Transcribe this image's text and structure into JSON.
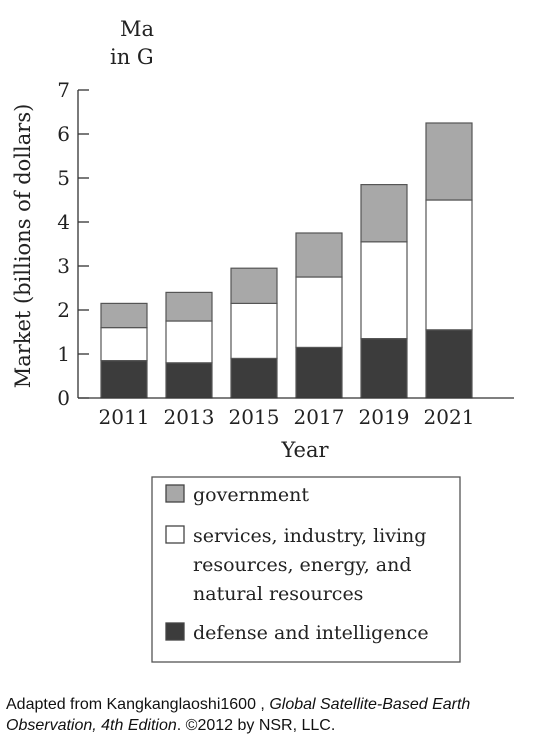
{
  "chart_data": {
    "type": "bar",
    "stacked": true,
    "title_lines": [
      "Ma",
      "in G"
    ],
    "xlabel": "Year",
    "ylabel": "Market (billions of dollars)",
    "ylim": [
      0,
      7
    ],
    "yticks": [
      "0",
      "1",
      "2",
      "3",
      "4",
      "5",
      "6",
      "7"
    ],
    "categories": [
      "2011",
      "2013",
      "2015",
      "2017",
      "2019",
      "2021"
    ],
    "series": [
      {
        "name": "defense and intelligence",
        "values": [
          0.85,
          0.8,
          0.9,
          1.15,
          1.35,
          1.55
        ]
      },
      {
        "name": "services, industry, living resources, energy, and natural resources",
        "values": [
          0.75,
          0.95,
          1.25,
          1.6,
          2.2,
          2.95
        ]
      },
      {
        "name": "government",
        "values": [
          0.55,
          0.65,
          0.8,
          1.0,
          1.3,
          1.75
        ]
      }
    ],
    "legend": {
      "placement": "bottom",
      "items": [
        {
          "lines": [
            "government"
          ],
          "color": "#a8a8a8"
        },
        {
          "lines": [
            "services, industry, living",
            "resources, energy, and",
            "natural resources"
          ],
          "color": "#ffffff"
        },
        {
          "lines": [
            "defense and intelligence"
          ],
          "color": "#3c3c3c"
        }
      ]
    },
    "colors": {
      "defense and intelligence": "#3c3c3c",
      "services, industry, living resources, energy, and natural resources": "#ffffff",
      "government": "#a8a8a8"
    },
    "grid": false
  },
  "source": {
    "prefix": "Adapted from Kangkanglaoshi1600",
    "title": "Global Satellite-Based Earth Observation, 4th Edition",
    "suffix": ". ©2012 by NSR, LLC."
  }
}
